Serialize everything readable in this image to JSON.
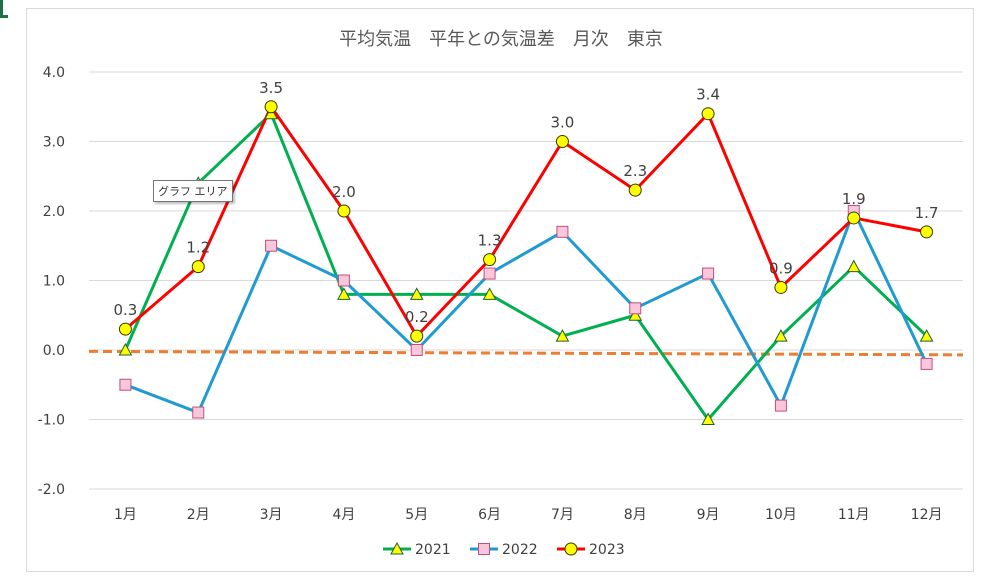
{
  "chart_data": {
    "type": "line",
    "title": "平均気温　平年との気温差　月次　東京",
    "categories": [
      "1月",
      "2月",
      "3月",
      "4月",
      "5月",
      "6月",
      "7月",
      "8月",
      "9月",
      "10月",
      "11月",
      "12月"
    ],
    "ylim": [
      -2.0,
      4.0
    ],
    "yticks": [
      "4.0",
      "3.0",
      "2.0",
      "1.0",
      "0.0",
      "-1.0",
      "-2.0"
    ],
    "ytick_values": [
      4,
      3,
      2,
      1,
      0,
      -1,
      -2
    ],
    "grid": true,
    "legend": "bottom",
    "series": [
      {
        "name": "2021",
        "color": "#00b050",
        "marker": "triangle",
        "marker_fill": "#ffff00",
        "values": [
          0.0,
          2.4,
          3.4,
          0.8,
          0.8,
          0.8,
          0.2,
          0.5,
          -1.0,
          0.2,
          1.2,
          0.2
        ]
      },
      {
        "name": "2022",
        "color": "#1f9bd1",
        "marker": "square",
        "marker_fill": "#f9c6dc",
        "values": [
          -0.5,
          -0.9,
          1.5,
          1.0,
          0.0,
          1.1,
          1.7,
          0.6,
          1.1,
          -0.8,
          2.0,
          -0.2
        ]
      },
      {
        "name": "2023",
        "color": "#ff0000",
        "marker": "circle",
        "marker_fill": "#ffff00",
        "values": [
          0.3,
          1.2,
          3.5,
          2.0,
          0.2,
          1.3,
          3.0,
          2.3,
          3.4,
          0.9,
          1.9,
          1.7
        ],
        "data_labels": [
          "0.3",
          "1.2",
          "3.5",
          "2.0",
          "0.2",
          "1.3",
          "3.0",
          "2.3",
          "3.4",
          "0.9",
          "1.9",
          "1.7"
        ]
      }
    ],
    "trendline": {
      "color": "#ed7d31",
      "style": "dashed",
      "from": -0.02,
      "to": -0.07
    }
  },
  "tooltip": {
    "text": "グラフ エリア"
  }
}
